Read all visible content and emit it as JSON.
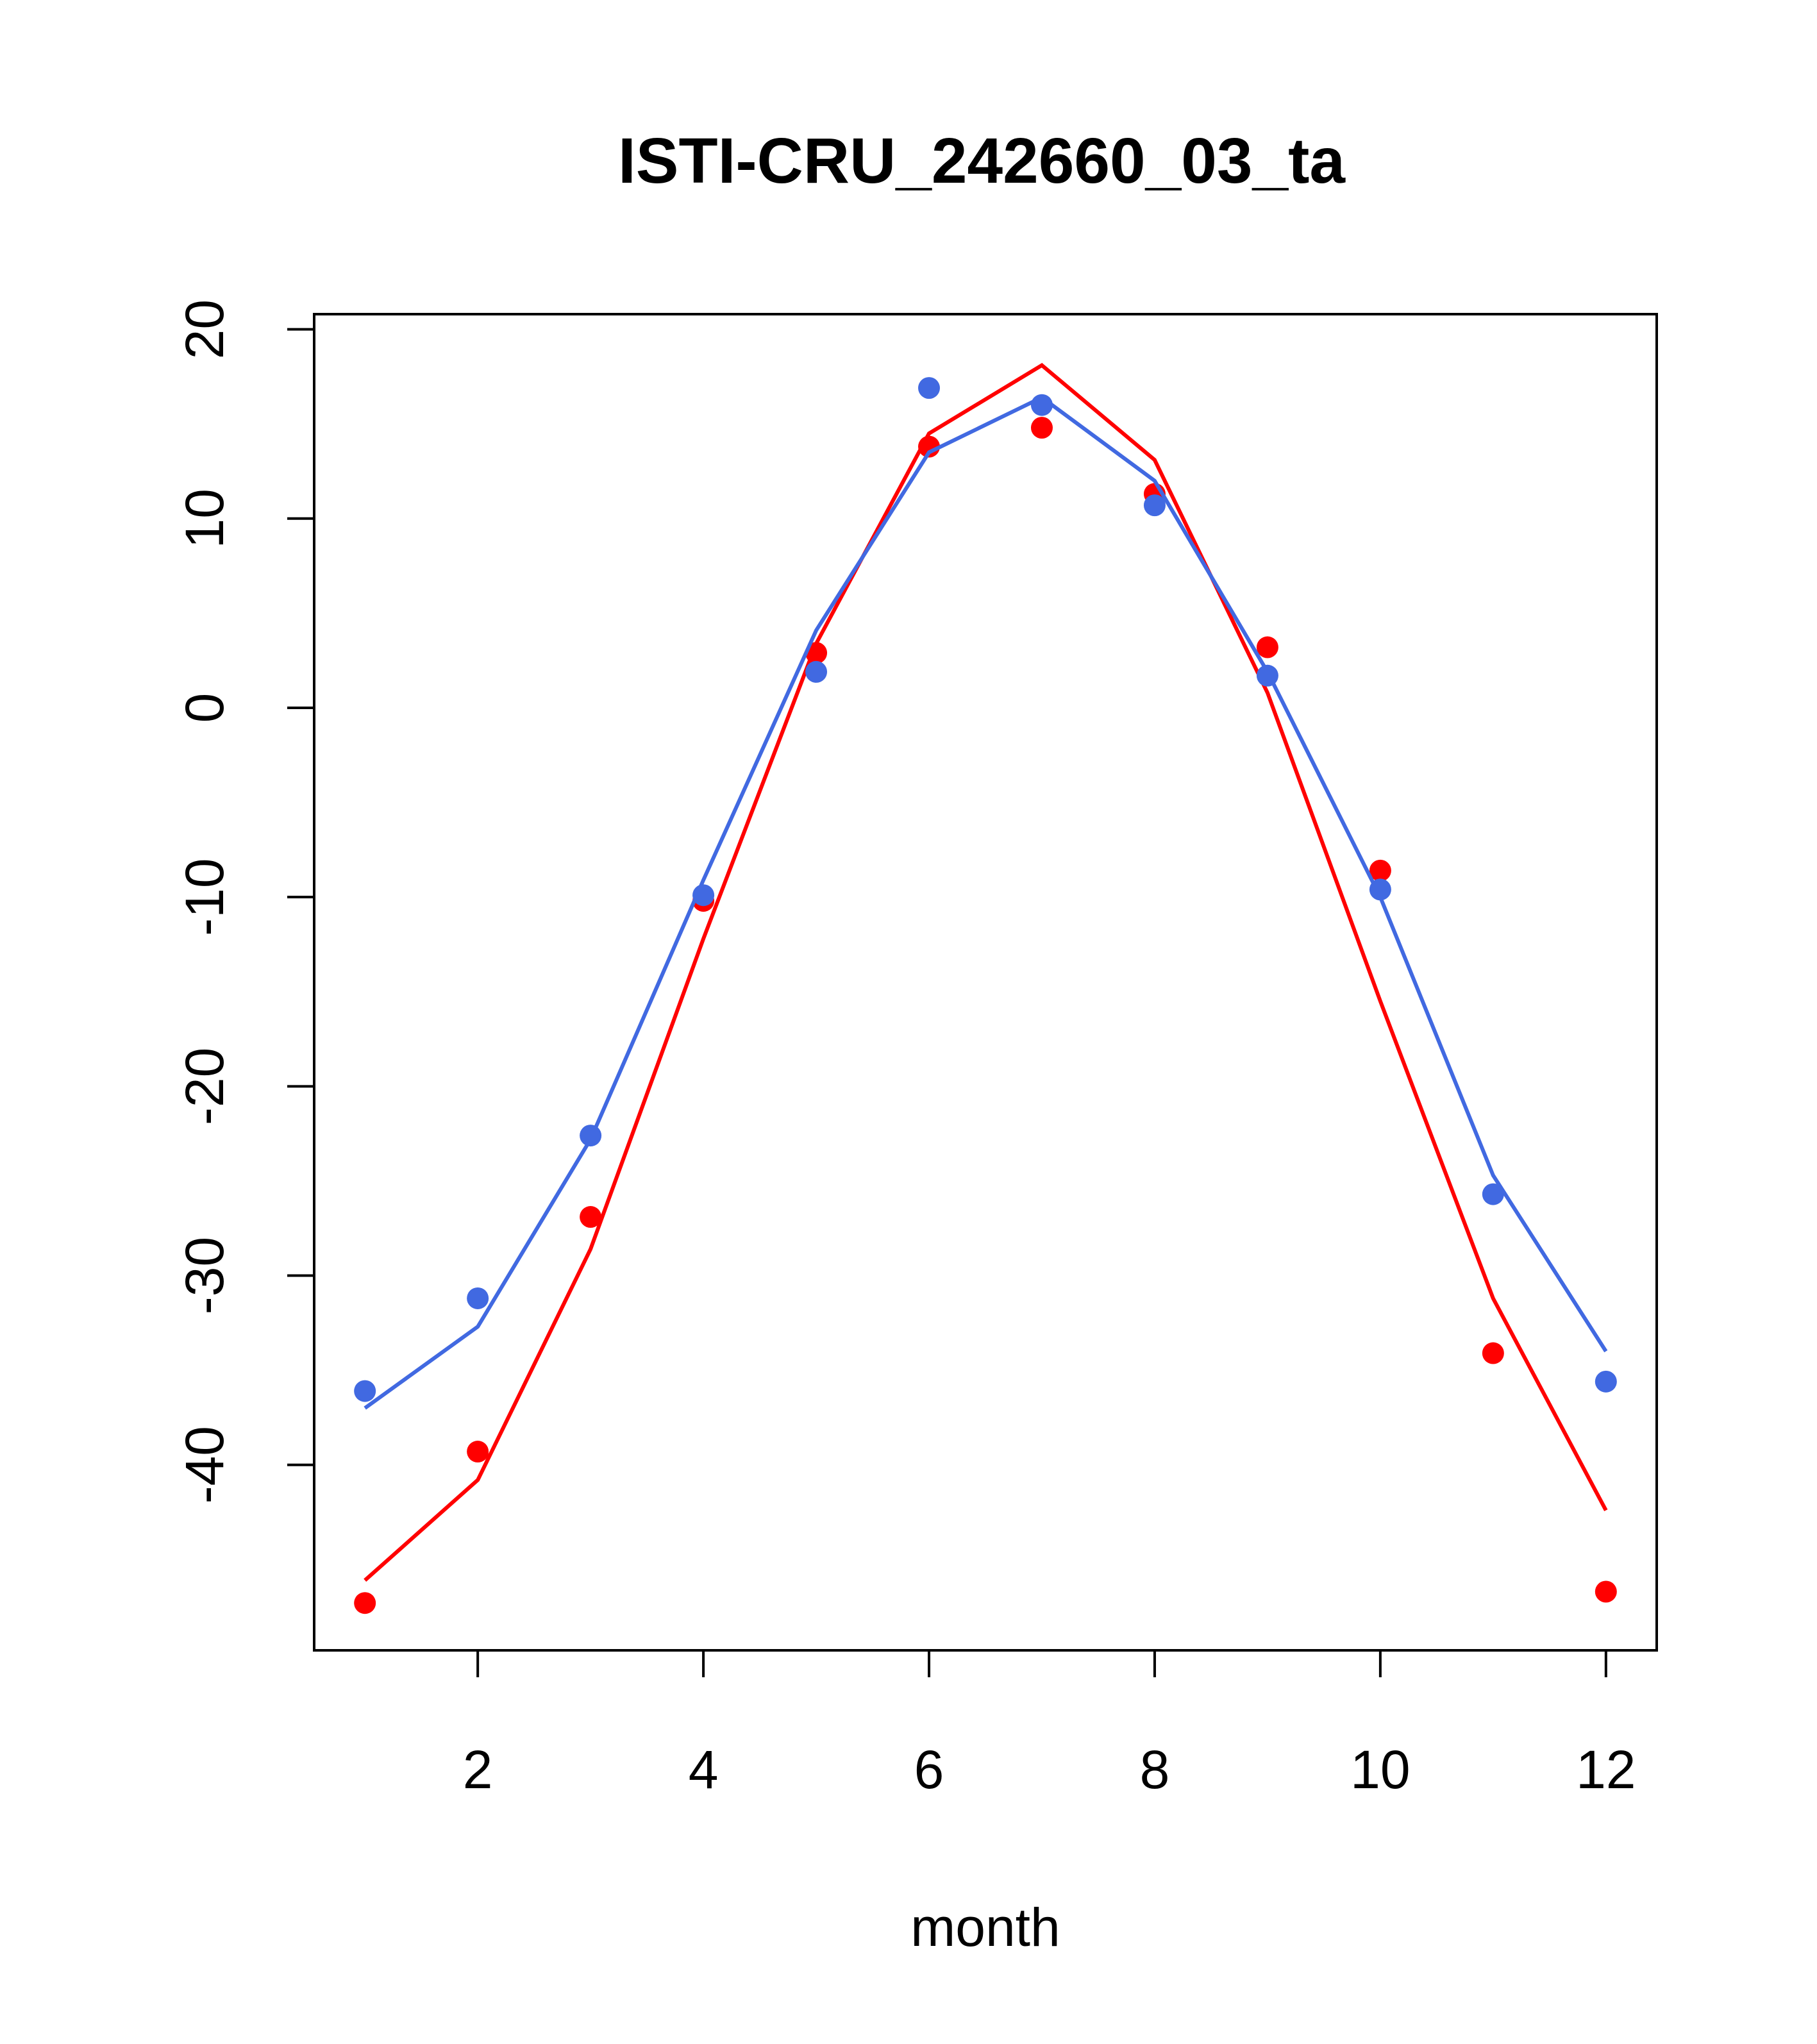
{
  "chart_data": {
    "type": "line",
    "title": "ISTI-CRU_242660_03_ta",
    "xlabel": "month",
    "ylabel": "",
    "xlim": [
      0.55,
      12.45
    ],
    "ylim": [
      -49.8,
      20.8
    ],
    "x_ticks": [
      2,
      4,
      6,
      8,
      10,
      12
    ],
    "y_ticks": [
      -40,
      -30,
      -20,
      -10,
      0,
      10,
      20
    ],
    "grid": false,
    "legend": "none",
    "x": [
      1,
      2,
      3,
      4,
      5,
      6,
      7,
      8,
      9,
      10,
      11,
      12
    ],
    "series": [
      {
        "color": "#ff0000",
        "points": [
          -47.3,
          -39.3,
          -26.9,
          -10.2,
          2.9,
          13.8,
          14.8,
          11.3,
          3.2,
          -8.6,
          -34.1,
          -46.7
        ],
        "line": [
          -46.1,
          -40.8,
          -28.6,
          -12.2,
          3.4,
          14.5,
          18.1,
          13.1,
          0.8,
          -15.5,
          -31.2,
          -42.4
        ]
      },
      {
        "color": "#4169e1",
        "points": [
          -36.1,
          -31.2,
          -22.6,
          -9.9,
          1.9,
          16.9,
          16.0,
          10.7,
          1.7,
          -9.6,
          -25.7,
          -35.6
        ],
        "line": [
          -37.0,
          -32.7,
          -22.8,
          -9.1,
          4.1,
          13.5,
          16.4,
          12.0,
          1.9,
          -10.0,
          -24.7,
          -34.0
        ]
      }
    ]
  }
}
